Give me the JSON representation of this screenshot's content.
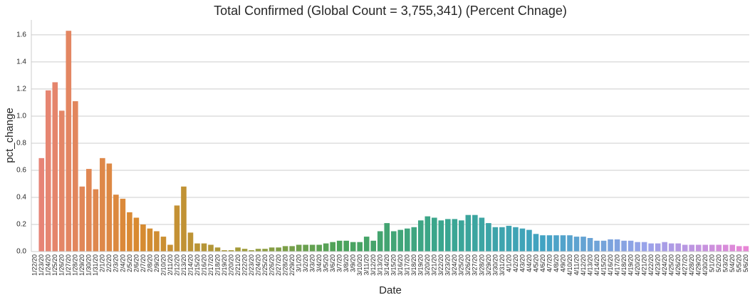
{
  "chart_data": {
    "type": "bar",
    "title": "Total Confirmed (Global Count = 3,755,341) (Percent Chnage)",
    "x_label": "Date",
    "y_label": "pct_change",
    "categories": [
      "1/22/20",
      "1/23/20",
      "1/24/20",
      "1/25/20",
      "1/26/20",
      "1/27/20",
      "1/28/20",
      "1/29/20",
      "1/30/20",
      "1/31/20",
      "2/1/20",
      "2/2/20",
      "2/3/20",
      "2/4/20",
      "2/5/20",
      "2/6/20",
      "2/7/20",
      "2/8/20",
      "2/9/20",
      "2/10/20",
      "2/11/20",
      "2/12/20",
      "2/13/20",
      "2/14/20",
      "2/15/20",
      "2/16/20",
      "2/17/20",
      "2/18/20",
      "2/19/20",
      "2/20/20",
      "2/21/20",
      "2/22/20",
      "2/23/20",
      "2/24/20",
      "2/25/20",
      "2/26/20",
      "2/27/20",
      "2/28/20",
      "2/29/20",
      "3/1/20",
      "3/2/20",
      "3/3/20",
      "3/4/20",
      "3/5/20",
      "3/6/20",
      "3/7/20",
      "3/8/20",
      "3/9/20",
      "3/10/20",
      "3/11/20",
      "3/12/20",
      "3/13/20",
      "3/14/20",
      "3/15/20",
      "3/16/20",
      "3/17/20",
      "3/18/20",
      "3/19/20",
      "3/20/20",
      "3/21/20",
      "3/22/20",
      "3/23/20",
      "3/24/20",
      "3/25/20",
      "3/26/20",
      "3/27/20",
      "3/28/20",
      "3/29/20",
      "3/30/20",
      "3/31/20",
      "4/1/20",
      "4/2/20",
      "4/3/20",
      "4/4/20",
      "4/5/20",
      "4/6/20",
      "4/7/20",
      "4/8/20",
      "4/9/20",
      "4/10/20",
      "4/11/20",
      "4/12/20",
      "4/13/20",
      "4/14/20",
      "4/15/20",
      "4/16/20",
      "4/17/20",
      "4/18/20",
      "4/19/20",
      "4/20/20",
      "4/21/20",
      "4/22/20",
      "4/23/20",
      "4/24/20",
      "4/25/20",
      "4/26/20",
      "4/27/20",
      "4/28/20",
      "4/29/20",
      "4/30/20",
      "5/1/20",
      "5/2/20",
      "5/3/20",
      "5/4/20",
      "5/5/20",
      "5/6/20"
    ],
    "values": [
      0,
      0.69,
      1.19,
      1.25,
      1.04,
      1.63,
      1.11,
      0.48,
      0.61,
      0.46,
      0.69,
      0.65,
      0.42,
      0.39,
      0.29,
      0.25,
      0.2,
      0.17,
      0.15,
      0.11,
      0.05,
      0.34,
      0.48,
      0.14,
      0.06,
      0.06,
      0.05,
      0.03,
      0.01,
      0.01,
      0.03,
      0.02,
      0.01,
      0.02,
      0.02,
      0.03,
      0.03,
      0.04,
      0.04,
      0.05,
      0.05,
      0.05,
      0.05,
      0.06,
      0.07,
      0.08,
      0.08,
      0.07,
      0.07,
      0.11,
      0.08,
      0.15,
      0.21,
      0.15,
      0.16,
      0.17,
      0.18,
      0.23,
      0.26,
      0.25,
      0.23,
      0.24,
      0.24,
      0.23,
      0.27,
      0.27,
      0.25,
      0.21,
      0.18,
      0.18,
      0.19,
      0.18,
      0.17,
      0.16,
      0.13,
      0.12,
      0.12,
      0.12,
      0.12,
      0.12,
      0.11,
      0.11,
      0.1,
      0.08,
      0.08,
      0.09,
      0.09,
      0.08,
      0.08,
      0.07,
      0.07,
      0.06,
      0.06,
      0.07,
      0.06,
      0.06,
      0.05,
      0.05,
      0.05,
      0.05,
      0.05,
      0.05,
      0.05,
      0.05,
      0.04,
      0.04
    ],
    "palette": [
      "#e8847b",
      "#d98a30",
      "#a59b39",
      "#4ba35a",
      "#3aa68e",
      "#41a3c3",
      "#98a3ea",
      "#e886d6"
    ],
    "ylim": [
      0,
      1.71
    ],
    "yticks": [
      {
        "value": 0,
        "label": "0.0"
      },
      0.2,
      0.4,
      0.6,
      0.8,
      {
        "value": 1,
        "label": "1.0"
      },
      1.2,
      1.4,
      1.6
    ],
    "grid": true
  }
}
